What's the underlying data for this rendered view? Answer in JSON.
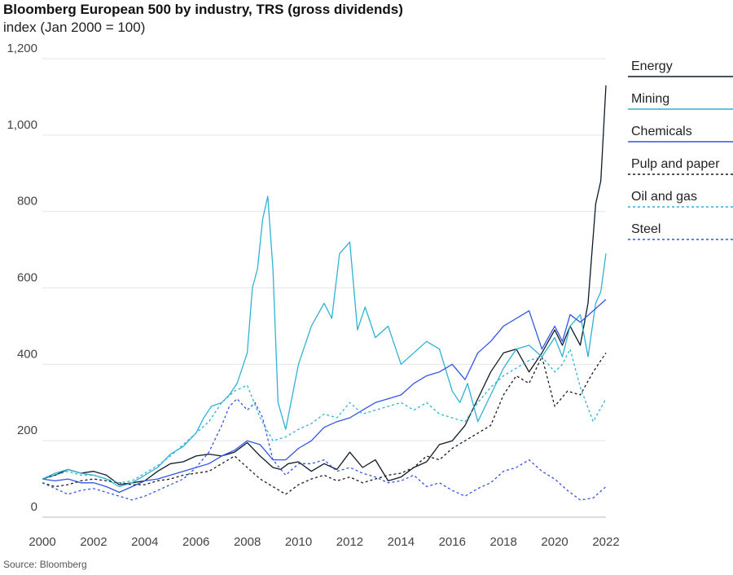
{
  "title": "Bloomberg European 500 by industry, TRS (gross dividends)",
  "subtitle": "index (Jan 2000 = 100)",
  "source": "Source: Bloomberg",
  "chart_data": {
    "type": "line",
    "title": "Bloomberg European 500 by industry, TRS (gross dividends)",
    "subtitle": "index (Jan 2000 = 100)",
    "xlabel": "",
    "ylabel": "",
    "xlim": [
      2000,
      2022
    ],
    "ylim": [
      0,
      1200
    ],
    "x_ticks": [
      "2000",
      "2002",
      "2004",
      "2006",
      "2008",
      "2010",
      "2012",
      "2014",
      "2016",
      "2018",
      "2020",
      "2022"
    ],
    "y_ticks": [
      "0",
      "200",
      "400",
      "600",
      "800",
      "1,000",
      "1,200"
    ],
    "grid": "horizontal",
    "legend_position": "right",
    "series": [
      {
        "name": "Energy",
        "color": "#0d1b2a",
        "dash": "solid",
        "x": [
          2000,
          2000.5,
          2001,
          2001.5,
          2002,
          2002.5,
          2003,
          2003.5,
          2004,
          2004.5,
          2005,
          2005.5,
          2006,
          2006.5,
          2007,
          2007.5,
          2008,
          2008.5,
          2009,
          2009.3,
          2009.6,
          2010,
          2010.5,
          2011,
          2011.5,
          2012,
          2012.5,
          2013,
          2013.5,
          2014,
          2014.5,
          2015,
          2015.5,
          2016,
          2016.5,
          2017,
          2017.5,
          2018,
          2018.5,
          2019,
          2019.5,
          2020,
          2020.3,
          2020.6,
          2021,
          2021.3,
          2021.6,
          2021.8,
          2022
        ],
        "y": [
          100,
          110,
          125,
          115,
          120,
          110,
          85,
          90,
          95,
          120,
          140,
          145,
          160,
          165,
          160,
          170,
          195,
          160,
          130,
          125,
          140,
          145,
          120,
          140,
          125,
          170,
          130,
          150,
          95,
          105,
          130,
          145,
          190,
          200,
          240,
          310,
          380,
          430,
          440,
          380,
          430,
          490,
          450,
          500,
          450,
          560,
          820,
          880,
          1130
        ]
      },
      {
        "name": "Mining",
        "color": "#2fb2d6",
        "dash": "solid",
        "x": [
          2000,
          2000.5,
          2001,
          2001.5,
          2002,
          2002.5,
          2003,
          2003.5,
          2004,
          2004.5,
          2005,
          2005.5,
          2006,
          2006.3,
          2006.6,
          2007,
          2007.3,
          2007.6,
          2008,
          2008.2,
          2008.4,
          2008.6,
          2008.8,
          2009,
          2009.2,
          2009.5,
          2010,
          2010.5,
          2011,
          2011.3,
          2011.6,
          2012,
          2012.3,
          2012.6,
          2013,
          2013.5,
          2014,
          2014.5,
          2015,
          2015.5,
          2016,
          2016.3,
          2016.6,
          2017,
          2017.5,
          2018,
          2018.5,
          2019,
          2019.5,
          2020,
          2020.3,
          2020.6,
          2021,
          2021.3,
          2021.6,
          2021.8,
          2022
        ],
        "y": [
          100,
          115,
          125,
          115,
          110,
          100,
          80,
          90,
          110,
          130,
          165,
          185,
          220,
          260,
          290,
          300,
          320,
          350,
          430,
          600,
          650,
          780,
          840,
          650,
          300,
          230,
          400,
          500,
          560,
          520,
          690,
          720,
          490,
          550,
          470,
          500,
          400,
          430,
          460,
          440,
          330,
          300,
          350,
          250,
          320,
          390,
          440,
          450,
          420,
          470,
          420,
          500,
          530,
          420,
          560,
          590,
          690
        ]
      },
      {
        "name": "Chemicals",
        "color": "#3355e6",
        "dash": "solid",
        "x": [
          2000,
          2000.5,
          2001,
          2001.5,
          2002,
          2002.5,
          2003,
          2003.5,
          2004,
          2004.5,
          2005,
          2005.5,
          2006,
          2006.5,
          2007,
          2007.5,
          2008,
          2008.5,
          2009,
          2009.5,
          2010,
          2010.5,
          2011,
          2011.5,
          2012,
          2012.5,
          2013,
          2013.5,
          2014,
          2014.5,
          2015,
          2015.5,
          2016,
          2016.5,
          2017,
          2017.5,
          2018,
          2018.5,
          2019,
          2019.5,
          2020,
          2020.3,
          2020.6,
          2021,
          2021.5,
          2022
        ],
        "y": [
          100,
          95,
          100,
          90,
          90,
          80,
          65,
          80,
          95,
          100,
          110,
          120,
          130,
          140,
          160,
          175,
          200,
          190,
          150,
          150,
          180,
          200,
          235,
          250,
          260,
          280,
          300,
          310,
          320,
          350,
          370,
          380,
          400,
          360,
          430,
          460,
          500,
          520,
          540,
          440,
          500,
          460,
          530,
          510,
          540,
          570
        ]
      },
      {
        "name": "Pulp and paper",
        "color": "#1a1a1a",
        "dash": "3,3",
        "x": [
          2000,
          2000.5,
          2001,
          2001.5,
          2002,
          2002.5,
          2003,
          2003.5,
          2004,
          2004.5,
          2005,
          2005.5,
          2006,
          2006.5,
          2007,
          2007.5,
          2008,
          2008.5,
          2009,
          2009.5,
          2010,
          2010.5,
          2011,
          2011.5,
          2012,
          2012.5,
          2013,
          2013.5,
          2014,
          2014.5,
          2015,
          2015.5,
          2016,
          2016.5,
          2017,
          2017.5,
          2018,
          2018.5,
          2019,
          2019.5,
          2020,
          2020.5,
          2021,
          2021.5,
          2022
        ],
        "y": [
          90,
          80,
          85,
          95,
          100,
          95,
          90,
          85,
          85,
          95,
          100,
          110,
          115,
          120,
          140,
          160,
          130,
          100,
          80,
          60,
          85,
          100,
          110,
          95,
          105,
          90,
          100,
          110,
          115,
          130,
          160,
          150,
          180,
          200,
          220,
          240,
          320,
          370,
          350,
          420,
          290,
          330,
          320,
          380,
          430
        ]
      },
      {
        "name": "Oil and gas",
        "color": "#2fb2d6",
        "dash": "3,3",
        "x": [
          2000,
          2000.5,
          2001,
          2001.5,
          2002,
          2002.5,
          2003,
          2003.5,
          2004,
          2004.5,
          2005,
          2005.5,
          2006,
          2006.5,
          2007,
          2007.5,
          2008,
          2008.5,
          2009,
          2009.5,
          2010,
          2010.5,
          2011,
          2011.5,
          2012,
          2012.5,
          2013,
          2013.5,
          2014,
          2014.5,
          2015,
          2015.5,
          2016,
          2016.5,
          2017,
          2017.5,
          2018,
          2018.5,
          2019,
          2019.5,
          2020,
          2020.3,
          2020.6,
          2021,
          2021.5,
          2022
        ],
        "y": [
          100,
          110,
          120,
          110,
          110,
          100,
          90,
          95,
          115,
          135,
          160,
          190,
          220,
          250,
          300,
          330,
          345,
          260,
          200,
          210,
          230,
          245,
          270,
          260,
          300,
          270,
          280,
          290,
          300,
          280,
          300,
          270,
          260,
          250,
          300,
          340,
          370,
          390,
          410,
          420,
          380,
          400,
          440,
          340,
          250,
          310
        ]
      },
      {
        "name": "Steel",
        "color": "#3355e6",
        "dash": "3,3",
        "x": [
          2000,
          2000.5,
          2001,
          2001.5,
          2002,
          2002.5,
          2003,
          2003.5,
          2004,
          2004.5,
          2005,
          2005.5,
          2006,
          2006.5,
          2007,
          2007.3,
          2007.6,
          2008,
          2008.3,
          2008.6,
          2009,
          2009.5,
          2010,
          2010.5,
          2011,
          2011.5,
          2012,
          2012.5,
          2013,
          2013.5,
          2014,
          2014.5,
          2015,
          2015.5,
          2016,
          2016.5,
          2017,
          2017.5,
          2018,
          2018.5,
          2019,
          2019.5,
          2020,
          2020.5,
          2021,
          2021.5,
          2022
        ],
        "y": [
          90,
          75,
          60,
          70,
          75,
          65,
          55,
          45,
          55,
          70,
          85,
          100,
          130,
          170,
          240,
          290,
          310,
          280,
          300,
          260,
          150,
          110,
          140,
          140,
          150,
          120,
          130,
          115,
          105,
          90,
          95,
          110,
          80,
          90,
          70,
          55,
          75,
          90,
          120,
          130,
          150,
          120,
          100,
          70,
          45,
          50,
          80
        ]
      }
    ]
  }
}
